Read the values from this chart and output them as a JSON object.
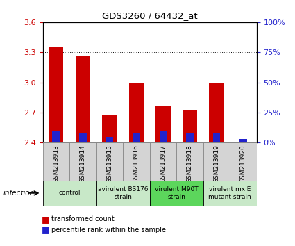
{
  "title": "GDS3260 / 64432_at",
  "samples": [
    "GSM213913",
    "GSM213914",
    "GSM213915",
    "GSM213916",
    "GSM213917",
    "GSM213918",
    "GSM213919",
    "GSM213920"
  ],
  "transformed_count": [
    3.36,
    3.27,
    2.67,
    2.99,
    2.77,
    2.73,
    3.0,
    2.41
  ],
  "percentile_rank": [
    10,
    8,
    5,
    8,
    10,
    8,
    8,
    3
  ],
  "ylim_left": [
    2.4,
    3.6
  ],
  "ylim_right": [
    0,
    100
  ],
  "yticks_left": [
    2.4,
    2.7,
    3.0,
    3.3,
    3.6
  ],
  "yticks_right": [
    0,
    25,
    50,
    75,
    100
  ],
  "ytick_labels_right": [
    "0%",
    "25%",
    "50%",
    "75%",
    "100%"
  ],
  "grid_lines": [
    2.7,
    3.0,
    3.3
  ],
  "bar_color_red": "#cc0000",
  "bar_color_blue": "#2222cc",
  "bar_width": 0.55,
  "blue_bar_width": 0.28,
  "groups": [
    {
      "label": "control",
      "span": [
        0,
        1
      ],
      "color": "#c8e8c8"
    },
    {
      "label": "avirulent BS176\nstrain",
      "span": [
        2,
        3
      ],
      "color": "#c8e8c8"
    },
    {
      "label": "virulent M90T\nstrain",
      "span": [
        4,
        5
      ],
      "color": "#5cd65c"
    },
    {
      "label": "virulent mxiE\nmutant strain",
      "span": [
        6,
        7
      ],
      "color": "#c8e8c8"
    }
  ],
  "infection_label": "infection",
  "legend_red": "transformed count",
  "legend_blue": "percentile rank within the sample",
  "tick_color_left": "#cc0000",
  "tick_color_right": "#2222cc",
  "sample_box_color": "#d4d4d4",
  "sample_box_border": "#888888"
}
